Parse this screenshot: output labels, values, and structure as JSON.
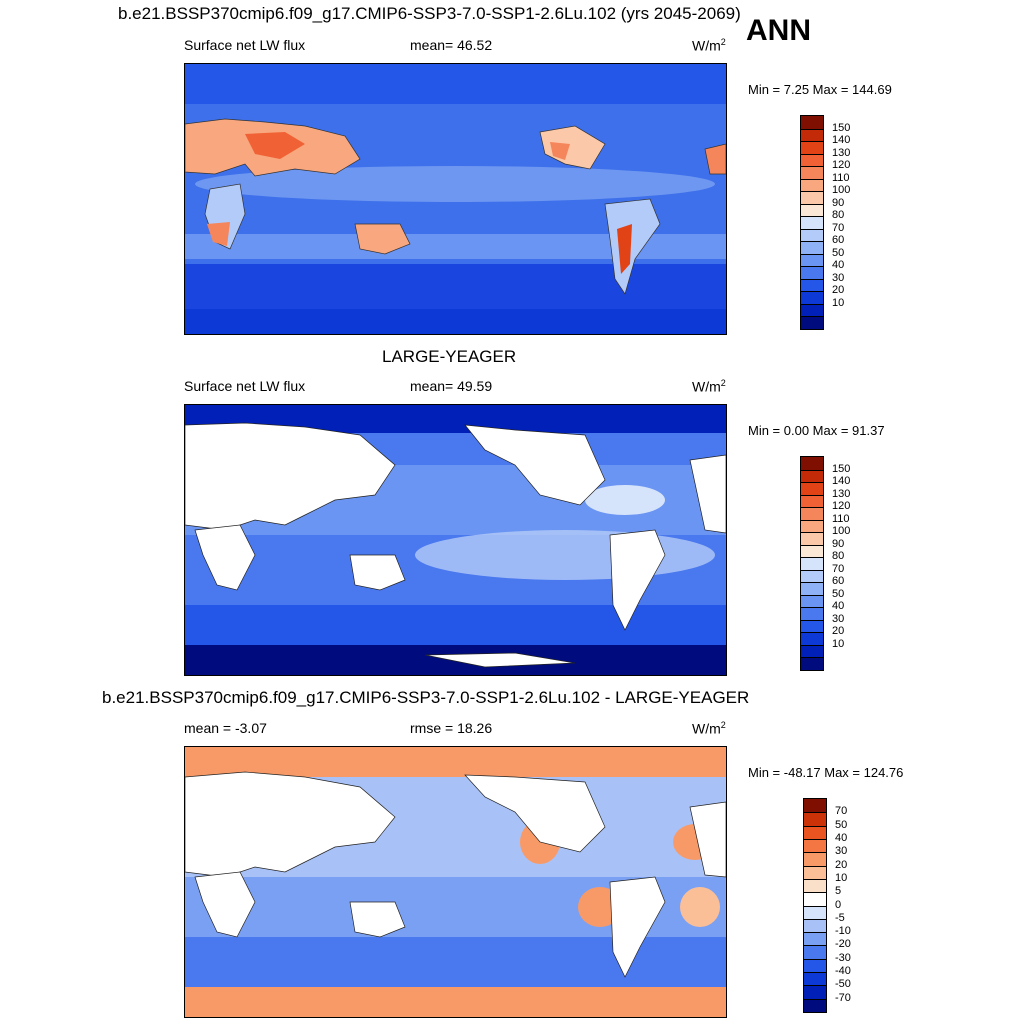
{
  "season": "ANN",
  "palettes": {
    "absolute": [
      "#000c7d",
      "#0020b8",
      "#0d3ad6",
      "#2457e8",
      "#4a78ee",
      "#6b95f2",
      "#8fb1f5",
      "#b3cbf8",
      "#d6e4fb",
      "#fbe7d6",
      "#fbc9a9",
      "#f8a77e",
      "#f5855a",
      "#f06235",
      "#e24316",
      "#c22a08",
      "#7f0f00"
    ],
    "difference": [
      "#000c7d",
      "#0020b8",
      "#0d3ad6",
      "#2457e8",
      "#4a78ee",
      "#7aa0f3",
      "#a8c2f7",
      "#d6e4fb",
      "#ffffff",
      "#fbe0c9",
      "#fbbf98",
      "#f89a68",
      "#f47642",
      "#ea5421",
      "#cc3208",
      "#7f0f00"
    ]
  },
  "panels": [
    {
      "title": "b.e21.BSSP370cmip6.f09_g17.CMIP6-SSP3-7.0-SSP1-2.6Lu.102 (yrs 2045-2069)",
      "left_label": "Surface net LW flux",
      "center_label": "mean=  46.52",
      "units": "W/m",
      "units_sup": "2",
      "minmax": "Min =   7.25 Max = 144.69",
      "colorbar_labels": [
        "150",
        "140",
        "130",
        "120",
        "110",
        "100",
        "90",
        "80",
        "70",
        "60",
        "50",
        "40",
        "30",
        "20",
        "10"
      ],
      "palette": "absolute"
    },
    {
      "title": "LARGE-YEAGER",
      "left_label": "Surface net LW flux",
      "center_label": "mean=  49.59",
      "units": "W/m",
      "units_sup": "2",
      "minmax": "Min =   0.00 Max =  91.37",
      "colorbar_labels": [
        "150",
        "140",
        "130",
        "120",
        "110",
        "100",
        "90",
        "80",
        "70",
        "60",
        "50",
        "40",
        "30",
        "20",
        "10"
      ],
      "palette": "absolute"
    },
    {
      "title": "b.e21.BSSP370cmip6.f09_g17.CMIP6-SSP3-7.0-SSP1-2.6Lu.102 - LARGE-YEAGER",
      "left_label": "mean =  -3.07",
      "center_label": "rmse =  18.26",
      "units": "W/m",
      "units_sup": "2",
      "minmax": "Min = -48.17 Max = 124.76",
      "colorbar_labels": [
        "70",
        "50",
        "40",
        "30",
        "20",
        "10",
        "5",
        "0",
        "-5",
        "-10",
        "-20",
        "-30",
        "-40",
        "-50",
        "-70"
      ],
      "palette": "difference"
    }
  ]
}
